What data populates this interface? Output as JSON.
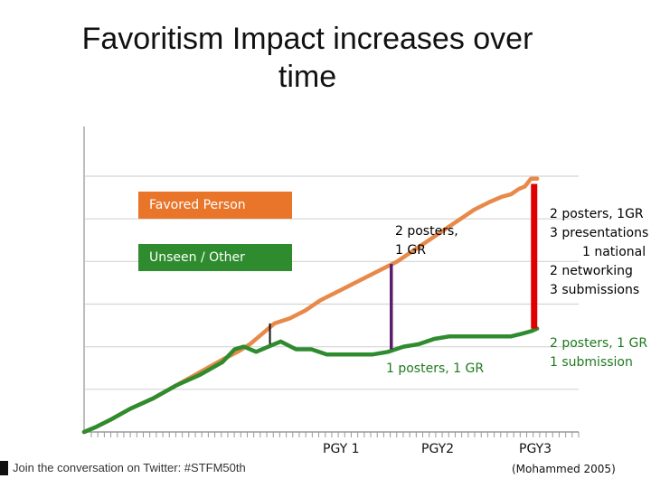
{
  "title": [
    "Favoritism Impact increases over",
    "time"
  ],
  "chart_data": {
    "type": "line",
    "title": "Favoritism Impact increases over time",
    "x_ticks": [
      {
        "label": "PGY 1",
        "x": 1
      },
      {
        "label": "PGY2",
        "x": 2
      },
      {
        "label": "PGY3",
        "x": 3
      }
    ],
    "xlim": [
      0,
      3.22
    ],
    "ylim": [
      0,
      1
    ],
    "grid": true,
    "legend_placement": "upper-left",
    "series": [
      {
        "name": "Favored Person",
        "color": "#e8894a",
        "x": [
          0,
          0.08,
          0.18,
          0.3,
          0.45,
          0.6,
          0.75,
          0.9,
          1.0,
          1.08,
          1.16,
          1.24,
          1.34,
          1.44,
          1.54,
          1.64,
          1.74,
          1.84,
          1.94,
          2.04,
          2.14,
          2.24,
          2.34,
          2.44,
          2.54,
          2.64,
          2.72,
          2.78,
          2.83,
          2.87,
          2.91,
          2.95
        ],
        "values": [
          0.0,
          0.02,
          0.05,
          0.09,
          0.13,
          0.18,
          0.23,
          0.28,
          0.31,
          0.34,
          0.38,
          0.42,
          0.44,
          0.47,
          0.51,
          0.54,
          0.57,
          0.6,
          0.63,
          0.66,
          0.7,
          0.74,
          0.78,
          0.82,
          0.86,
          0.89,
          0.91,
          0.92,
          0.94,
          0.95,
          0.98,
          0.98
        ]
      },
      {
        "name": "Unseen / Other",
        "color": "#2e8b2e",
        "x": [
          0,
          0.08,
          0.18,
          0.3,
          0.45,
          0.6,
          0.75,
          0.9,
          0.98,
          1.04,
          1.12,
          1.2,
          1.28,
          1.38,
          1.48,
          1.58,
          1.68,
          1.78,
          1.88,
          1.98,
          2.08,
          2.18,
          2.28,
          2.38,
          2.48,
          2.58,
          2.68,
          2.78,
          2.85,
          2.91,
          2.95
        ],
        "values": [
          0.0,
          0.02,
          0.05,
          0.09,
          0.13,
          0.18,
          0.22,
          0.27,
          0.32,
          0.33,
          0.31,
          0.33,
          0.35,
          0.32,
          0.32,
          0.3,
          0.3,
          0.3,
          0.3,
          0.31,
          0.33,
          0.34,
          0.36,
          0.37,
          0.37,
          0.37,
          0.37,
          0.37,
          0.38,
          0.39,
          0.4
        ]
      }
    ],
    "gap_markers": [
      {
        "x": 1.21,
        "from": 0.34,
        "to": 0.42,
        "color": "#111111"
      },
      {
        "x": 2.0,
        "from": 0.32,
        "to": 0.65,
        "color": "#5a1e6e"
      },
      {
        "x": 2.93,
        "from": 0.4,
        "to": 0.96,
        "color": "#e00000"
      }
    ],
    "annotations": [
      {
        "lines": [
          "2 posters,",
          "1 GR"
        ],
        "color": "#111111"
      },
      {
        "lines": [
          "2 posters, 1GR",
          "3 presentations",
          "1 national",
          "2 networking",
          "3 submissions"
        ],
        "color": "#111111"
      },
      {
        "lines": [
          "1 posters, 1 GR"
        ],
        "color": "#1e7a1e"
      },
      {
        "lines": [
          "2 posters, 1 GR",
          "1 submission"
        ],
        "color": "#1e7a1e"
      }
    ]
  },
  "footer": {
    "text": "Join the conversation on Twitter: #STFM50th"
  },
  "citation": "(Mohammed 2005)"
}
